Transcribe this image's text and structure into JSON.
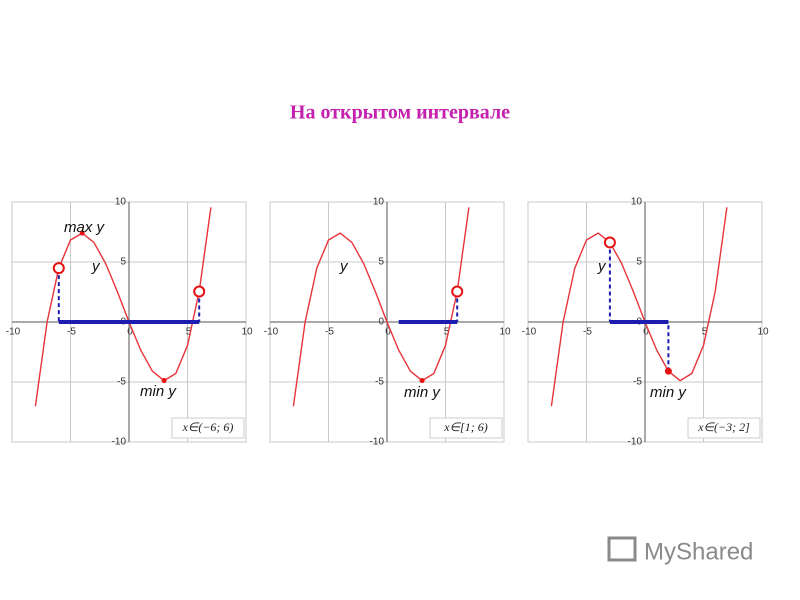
{
  "title": "На открытом интервале",
  "watermark": "MyShared",
  "chart_data": [
    {
      "type": "line",
      "x": [
        -8,
        -7,
        -6,
        -5,
        -4,
        -3,
        -2,
        -1,
        0,
        1,
        2,
        3,
        4,
        5,
        6,
        7
      ],
      "values": [
        -7.02,
        0,
        4.49,
        6.83,
        7.41,
        6.63,
        4.88,
        2.54,
        0,
        -2.34,
        -4.1,
        -4.88,
        -4.29,
        -1.95,
        2.54,
        9.56
      ],
      "color": "#e8333a",
      "xlim": [
        -10,
        10
      ],
      "ylim": [
        -10,
        10
      ],
      "xticks": [
        -10,
        -5,
        0,
        5,
        10
      ],
      "yticks": [
        -10,
        -5,
        0,
        5,
        10
      ],
      "grid": true,
      "interval": [
        -6,
        6
      ],
      "interval_label": "x∈(−6; 6)",
      "points": [
        {
          "x": -6,
          "y": 4.49,
          "open": true
        },
        {
          "x": 6,
          "y": 2.54,
          "open": true
        },
        {
          "x": -4,
          "y": 7.41,
          "open": false
        },
        {
          "x": 3,
          "y": -4.88,
          "open": false
        }
      ],
      "annotations": [
        "max y",
        "y",
        "min y"
      ]
    },
    {
      "type": "line",
      "x": [
        -8,
        -7,
        -6,
        -5,
        -4,
        -3,
        -2,
        -1,
        0,
        1,
        2,
        3,
        4,
        5,
        6,
        7
      ],
      "values": [
        -7.02,
        0,
        4.49,
        6.83,
        7.41,
        6.63,
        4.88,
        2.54,
        0,
        -2.34,
        -4.1,
        -4.88,
        -4.29,
        -1.95,
        2.54,
        9.56
      ],
      "color": "#e8333a",
      "xlim": [
        -10,
        10
      ],
      "ylim": [
        -10,
        10
      ],
      "xticks": [
        -10,
        -5,
        0,
        5,
        10
      ],
      "yticks": [
        -10,
        -5,
        0,
        5,
        10
      ],
      "grid": true,
      "interval": [
        1,
        6
      ],
      "interval_label": "x∈[1; 6)",
      "points": [
        {
          "x": 6,
          "y": 2.54,
          "open": true
        },
        {
          "x": 3,
          "y": -4.88,
          "open": false
        }
      ],
      "annotations": [
        "y",
        "min y"
      ]
    },
    {
      "type": "line",
      "x": [
        -8,
        -7,
        -6,
        -5,
        -4,
        -3,
        -2,
        -1,
        0,
        1,
        2,
        3,
        4,
        5,
        6,
        7
      ],
      "values": [
        -7.02,
        0,
        4.49,
        6.83,
        7.41,
        6.63,
        4.88,
        2.54,
        0,
        -2.34,
        -4.1,
        -4.88,
        -4.29,
        -1.95,
        2.54,
        9.56
      ],
      "color": "#e8333a",
      "xlim": [
        -10,
        10
      ],
      "ylim": [
        -10,
        10
      ],
      "xticks": [
        -10,
        -5,
        0,
        5,
        10
      ],
      "yticks": [
        -10,
        -5,
        0,
        5,
        10
      ],
      "grid": true,
      "interval": [
        -3,
        2
      ],
      "interval_label": "x∈(−3; 2]",
      "points": [
        {
          "x": -3,
          "y": 6.63,
          "open": true
        },
        {
          "x": 2,
          "y": -4.1,
          "open": false
        }
      ],
      "annotations": [
        "y",
        "min y"
      ]
    }
  ]
}
